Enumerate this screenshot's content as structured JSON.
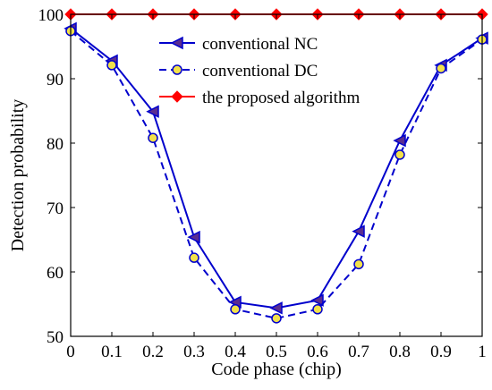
{
  "chart_data": {
    "type": "line",
    "title": "",
    "xlabel": "Code phase (chip)",
    "ylabel": "Detection probability",
    "xlim": [
      0,
      1
    ],
    "ylim": [
      50,
      100
    ],
    "xticks": [
      "0",
      "0.1",
      "0.2",
      "0.3",
      "0.4",
      "0.5",
      "0.6",
      "0.7",
      "0.8",
      "0.9",
      "1"
    ],
    "yticks": [
      "50",
      "60",
      "70",
      "80",
      "90",
      "100"
    ],
    "grid": false,
    "legend_position": "top-center",
    "x": [
      0,
      0.1,
      0.2,
      0.3,
      0.4,
      0.5,
      0.6,
      0.7,
      0.8,
      0.9,
      1.0
    ],
    "series": [
      {
        "name": "conventional NC",
        "values": [
          97.8,
          92.8,
          84.9,
          65.4,
          55.3,
          54.4,
          55.6,
          66.3,
          80.4,
          92.1,
          96.3
        ],
        "color": "#0000cc",
        "marker_color": "#5a2d91",
        "line_style": "solid",
        "marker": "left-triangle"
      },
      {
        "name": "conventional DC",
        "values": [
          97.4,
          92.1,
          80.8,
          62.2,
          54.2,
          52.8,
          54.2,
          61.2,
          78.2,
          91.6,
          96.1
        ],
        "color": "#0000cc",
        "marker_color": "#f2e14a",
        "line_style": "dashed",
        "marker": "circle"
      },
      {
        "name": "the proposed algorithm",
        "values": [
          100,
          100,
          100,
          100,
          100,
          100,
          100,
          100,
          100,
          100,
          100
        ],
        "color": "#ff0000",
        "marker_color": "#ff0000",
        "line_style": "solid",
        "marker": "diamond"
      }
    ]
  }
}
